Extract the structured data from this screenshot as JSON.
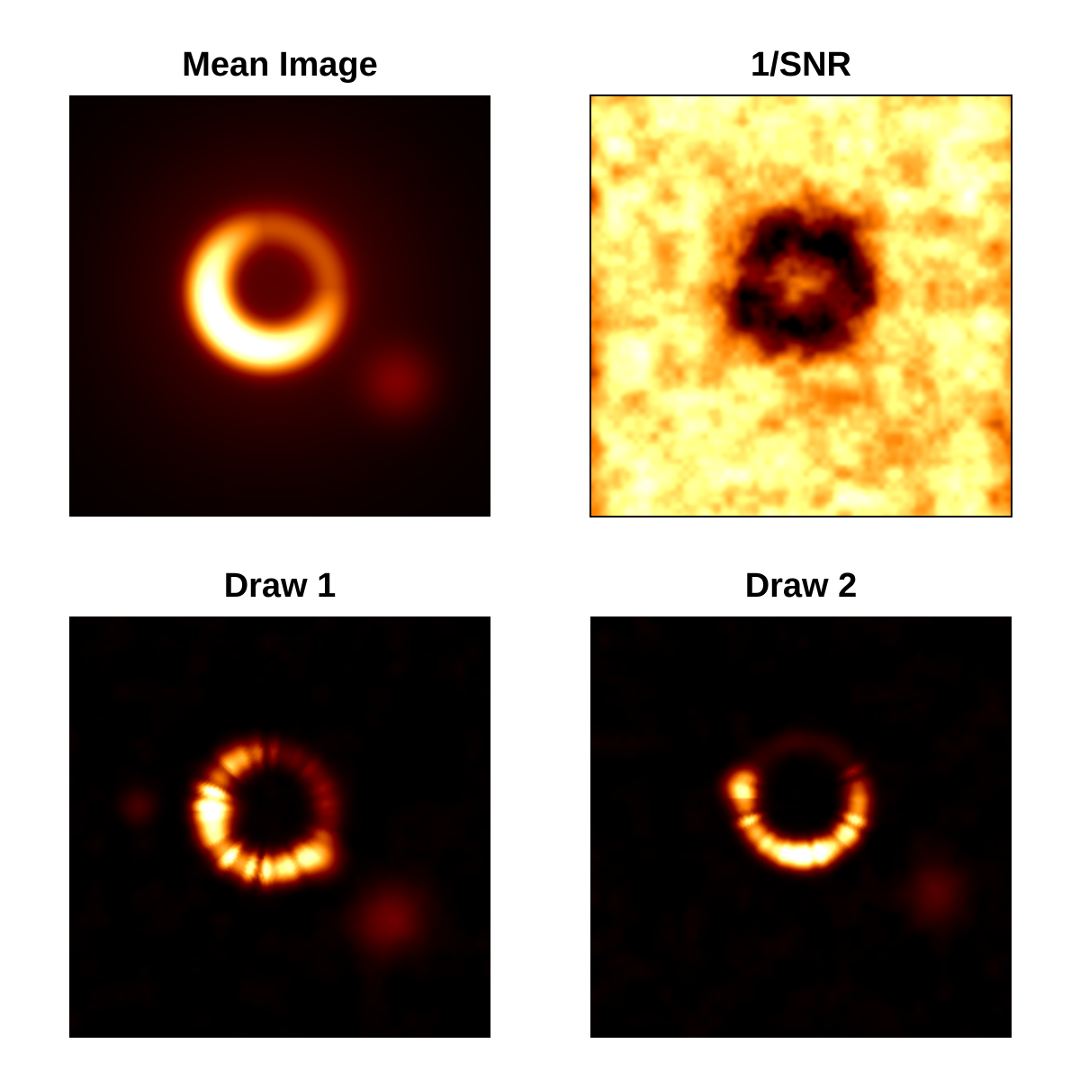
{
  "chart_data": [
    {
      "type": "heatmap",
      "title": "Mean Image",
      "colormap": "afmhot",
      "axes_visible": false,
      "frame": false
    },
    {
      "type": "heatmap",
      "title": "1/SNR",
      "colormap": "afmhot",
      "axes_visible": false,
      "frame": true
    },
    {
      "type": "heatmap",
      "title": "Draw 1",
      "colormap": "afmhot",
      "axes_visible": false,
      "frame": false
    },
    {
      "type": "heatmap",
      "title": "Draw 2",
      "colormap": "afmhot",
      "axes_visible": false,
      "frame": false
    }
  ]
}
